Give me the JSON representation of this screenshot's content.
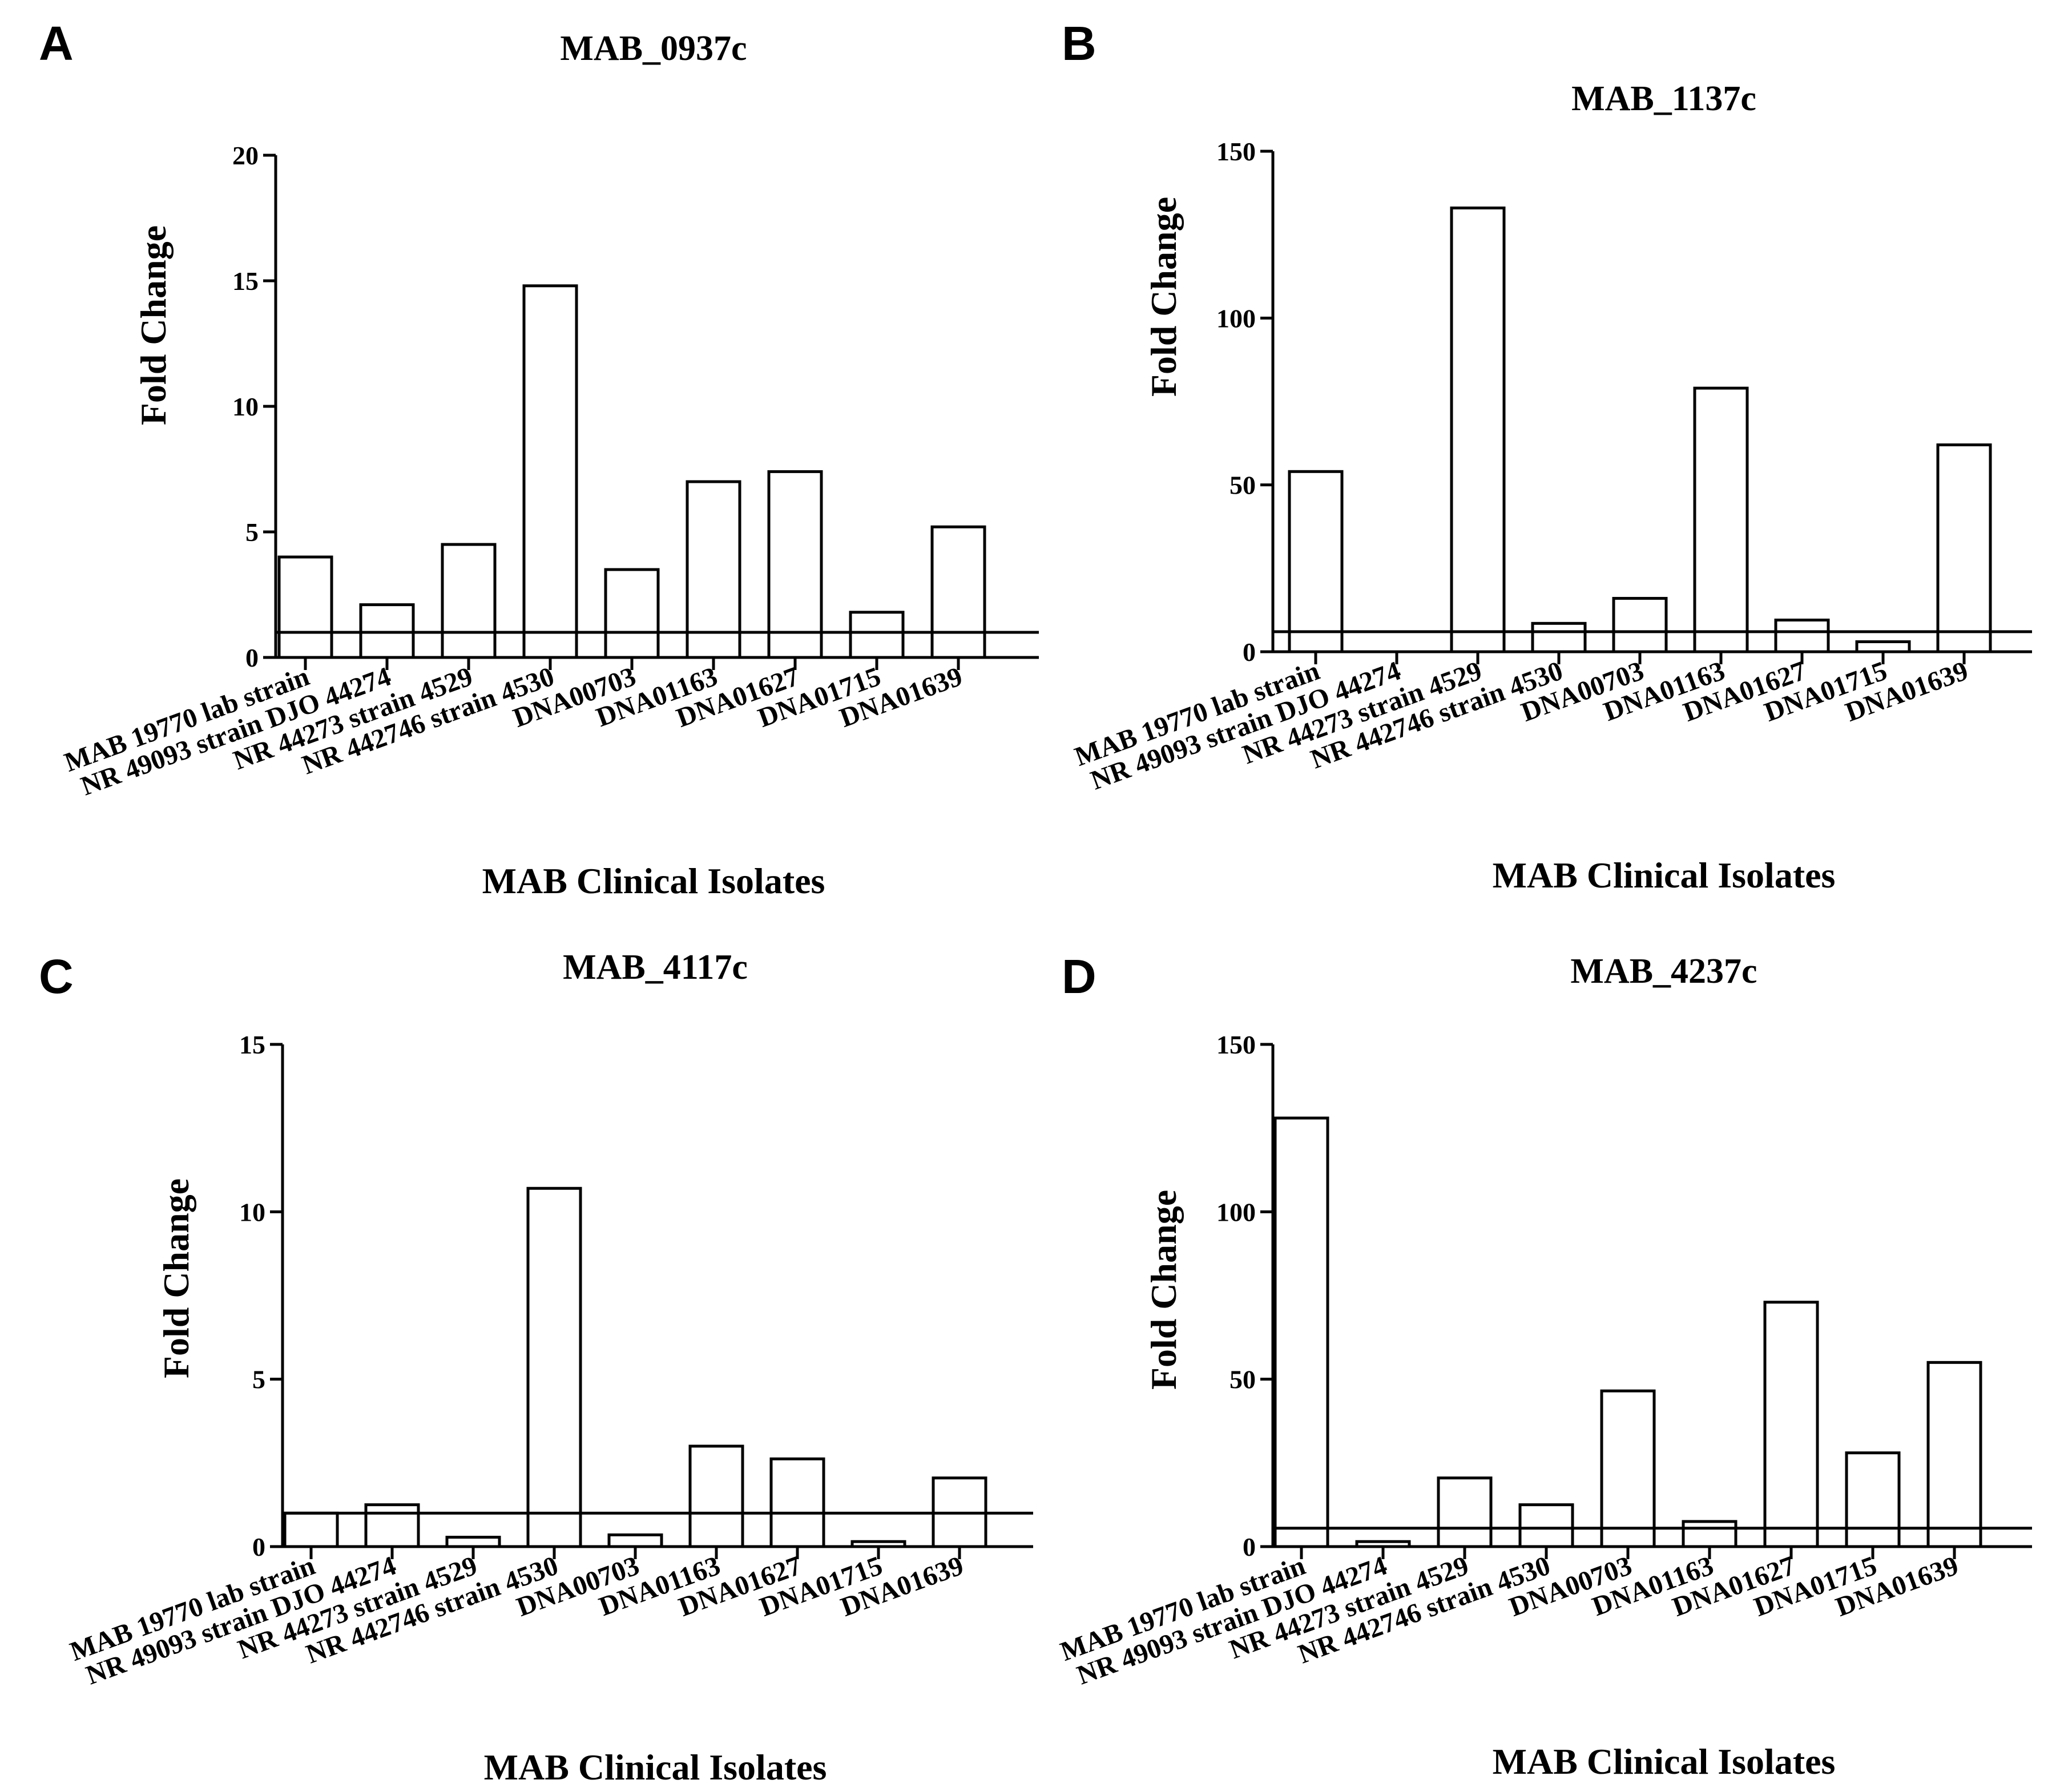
{
  "chart_data": [
    {
      "panel": "A",
      "type": "bar",
      "title": "MAB_0937c",
      "xlabel": "MAB Clinical Isolates",
      "ylabel": "Fold Change",
      "ylim": [
        0,
        20
      ],
      "yticks": [
        0,
        5,
        10,
        15,
        20
      ],
      "reference_line": 1,
      "categories": [
        "MAB 19770 lab strain",
        "NR 49093 strain DJO 44274",
        "NR 44273 strain 4529",
        "NR 442746 strain 4530",
        "DNA00703",
        "DNA01163",
        "DNA01627",
        "DNA01715",
        "DNA01639"
      ],
      "values": [
        4.0,
        2.1,
        4.5,
        14.8,
        3.5,
        7.0,
        7.4,
        1.8,
        5.2
      ]
    },
    {
      "panel": "B",
      "type": "bar",
      "title": "MAB_1137c",
      "xlabel": "MAB Clinical Isolates",
      "ylabel": "Fold Change",
      "ylim": [
        0,
        150
      ],
      "yticks": [
        0,
        50,
        100,
        150
      ],
      "reference_line": 6,
      "categories": [
        "MAB 19770 lab strain",
        "NR 49093 strain DJO 44274",
        "NR 44273 strain 4529",
        "NR 442746 strain 4530",
        "DNA00703",
        "DNA01163",
        "DNA01627",
        "DNA01715",
        "DNA01639"
      ],
      "values": [
        54,
        0,
        133,
        8.5,
        16,
        79,
        9.5,
        3,
        62
      ]
    },
    {
      "panel": "C",
      "type": "bar",
      "title": "MAB_4117c",
      "xlabel": "MAB Clinical Isolates",
      "ylabel": "Fold Change",
      "ylim": [
        0,
        15
      ],
      "yticks": [
        0,
        5,
        10,
        15
      ],
      "reference_line": 1,
      "categories": [
        "MAB 19770 lab strain",
        "NR 49093 strain DJO 44274",
        "NR 44273 strain 4529",
        "NR 442746 strain 4530",
        "DNA00703",
        "DNA01163",
        "DNA01627",
        "DNA01715",
        "DNA01639"
      ],
      "values": [
        1.0,
        1.25,
        0.28,
        10.7,
        0.35,
        3.0,
        2.62,
        0.15,
        2.05
      ]
    },
    {
      "panel": "D",
      "type": "bar",
      "title": "MAB_4237c",
      "xlabel": "MAB Clinical Isolates",
      "ylabel": "Fold Change",
      "ylim": [
        0,
        150
      ],
      "yticks": [
        0,
        50,
        100,
        150
      ],
      "reference_line": 5.5,
      "categories": [
        "MAB 19770 lab strain",
        "NR 49093 strain DJO 44274",
        "NR 44273 strain 4529",
        "NR 442746 strain 4530",
        "DNA00703",
        "DNA01163",
        "DNA01627",
        "DNA01715",
        "DNA01639"
      ],
      "values": [
        128,
        1.5,
        20.5,
        12.5,
        46.5,
        7.5,
        73,
        28,
        55
      ]
    }
  ]
}
